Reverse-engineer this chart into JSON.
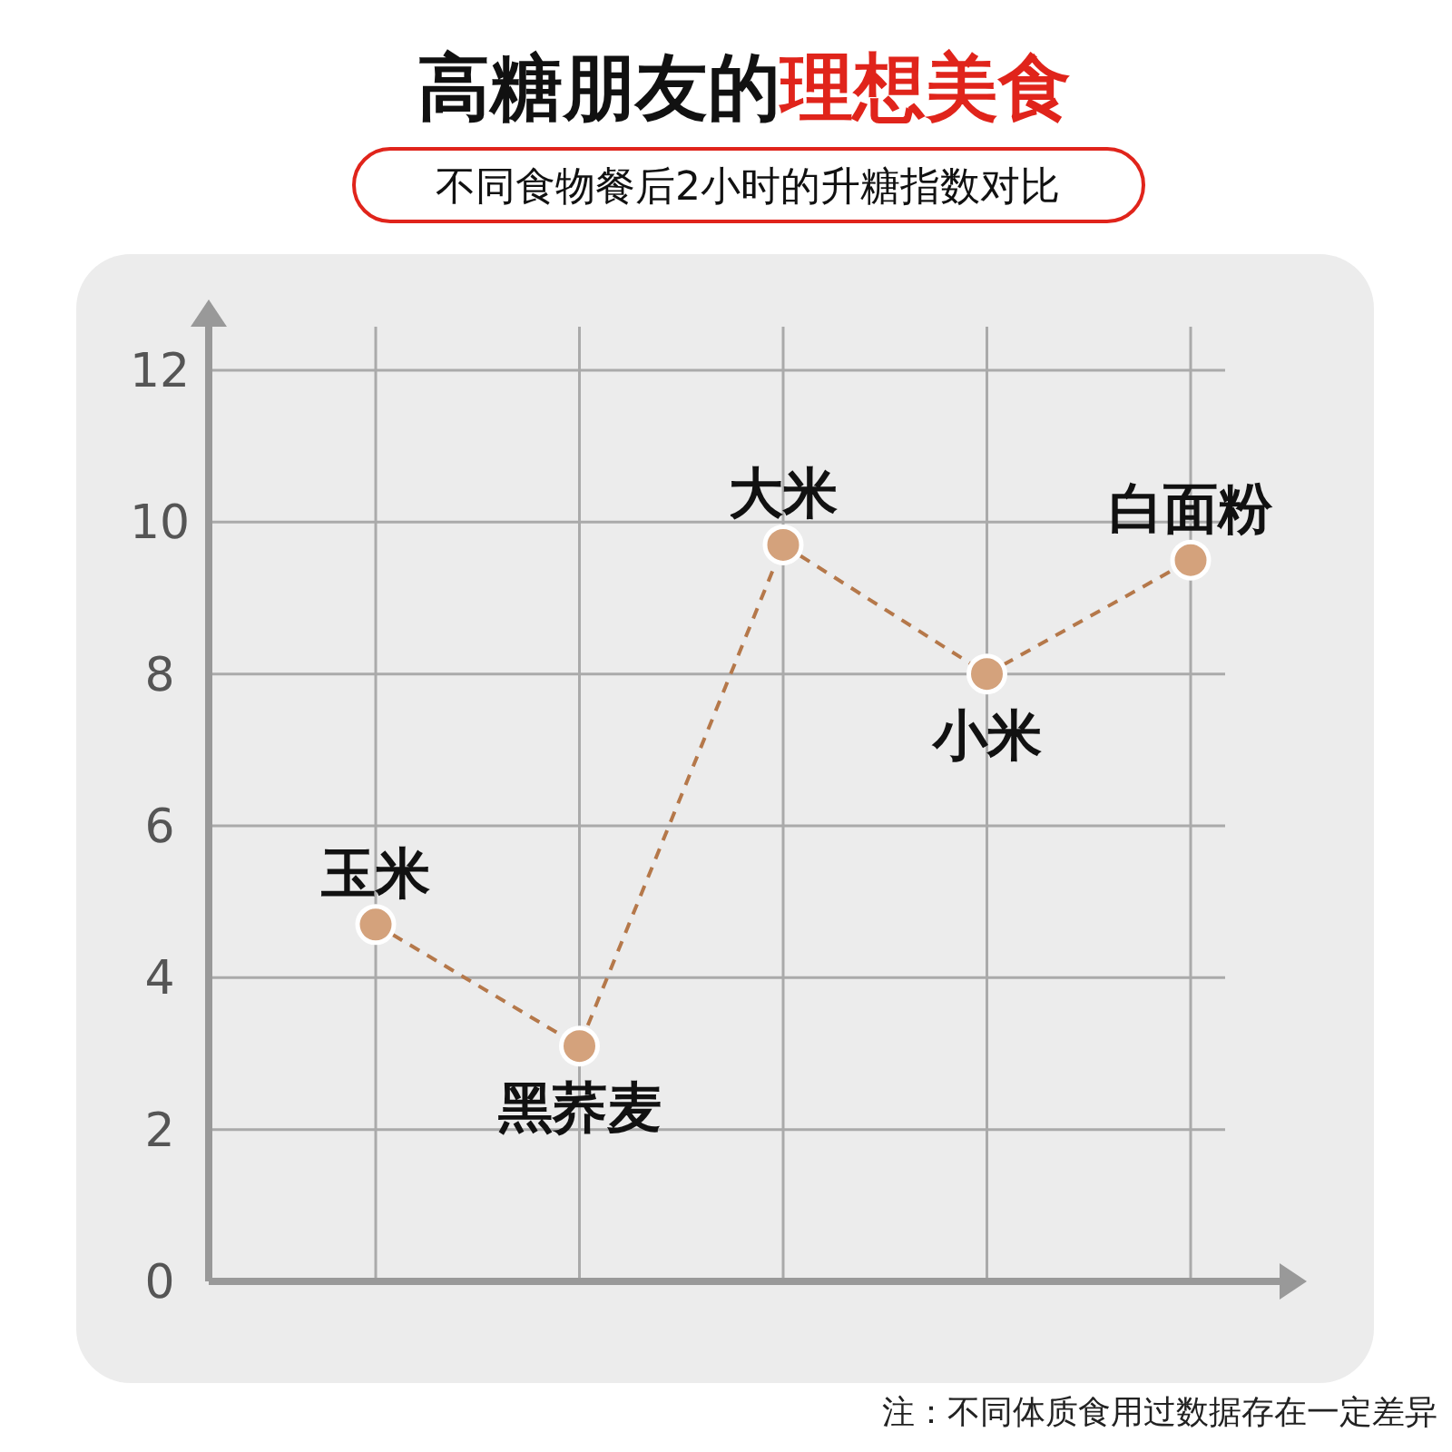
{
  "chart_data": {
    "type": "line",
    "title": "高糖朋友的理想美食",
    "subtitle": "不同食物餐后2小时的升糖指数对比",
    "annotations": [
      "注：不同体质食用过数据存在一定差异"
    ],
    "categories": [
      "玉米",
      "黑荞麦",
      "大米",
      "小米",
      "白面粉"
    ],
    "series": [
      {
        "color": "#b5784a",
        "values": [
          4.7,
          3.1,
          9.7,
          8.0,
          9.5
        ]
      }
    ],
    "ylim": [
      0,
      12
    ],
    "yticks": [
      0,
      2,
      4,
      6,
      8,
      10,
      12
    ],
    "grid": true,
    "marker": "circle",
    "line_style": "dashed"
  }
}
